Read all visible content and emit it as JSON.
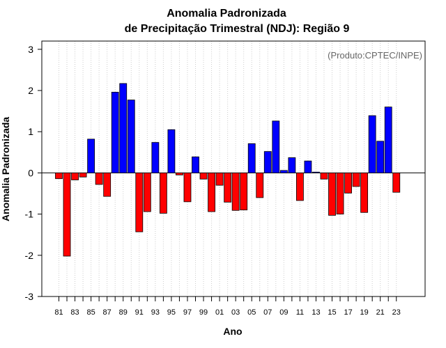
{
  "chart_data": {
    "type": "bar",
    "title_line1": "Anomalia Padronizada",
    "title_line2": "de Precipitação Trimestral (NDJ): Região 9",
    "xlabel": "Ano",
    "ylabel": "Anomalia Padronizada",
    "credit": "(Produto:CPTEC/INPE)",
    "ylim": [
      -3,
      3.2
    ],
    "yticks": [
      "3",
      "2",
      "1",
      "0",
      "-1",
      "-2",
      "-3"
    ],
    "ytick_values": [
      3,
      2,
      1,
      0,
      -1,
      -2,
      -3
    ],
    "x_tick_labels": [
      "81",
      "83",
      "85",
      "87",
      "89",
      "91",
      "93",
      "95",
      "97",
      "99",
      "01",
      "03",
      "05",
      "07",
      "09",
      "11",
      "13",
      "15",
      "17",
      "19",
      "21",
      "23"
    ],
    "categories": [
      "81",
      "82",
      "83",
      "84",
      "85",
      "86",
      "87",
      "88",
      "89",
      "90",
      "91",
      "92",
      "93",
      "94",
      "95",
      "96",
      "97",
      "98",
      "99",
      "00",
      "01",
      "02",
      "03",
      "04",
      "05",
      "06",
      "07",
      "08",
      "09",
      "10",
      "11",
      "12",
      "13",
      "14",
      "15",
      "16",
      "17",
      "18",
      "19",
      "20",
      "21",
      "22",
      "23"
    ],
    "values": [
      -0.14,
      -2.02,
      -0.17,
      -0.1,
      0.82,
      -0.28,
      -0.57,
      1.96,
      2.17,
      1.77,
      -1.43,
      -0.94,
      0.74,
      -0.98,
      1.05,
      -0.05,
      -0.7,
      0.39,
      -0.15,
      -0.94,
      -0.3,
      -0.71,
      -0.91,
      -0.9,
      0.71,
      -0.6,
      0.52,
      1.26,
      0.06,
      0.37,
      -0.67,
      0.29,
      0.02,
      -0.15,
      -1.03,
      -1.0,
      -0.49,
      -0.33,
      -0.96,
      1.39,
      0.77,
      1.6,
      -0.47
    ],
    "positive_color": "#0000ff",
    "negative_color": "#ff0000",
    "grid": true
  }
}
